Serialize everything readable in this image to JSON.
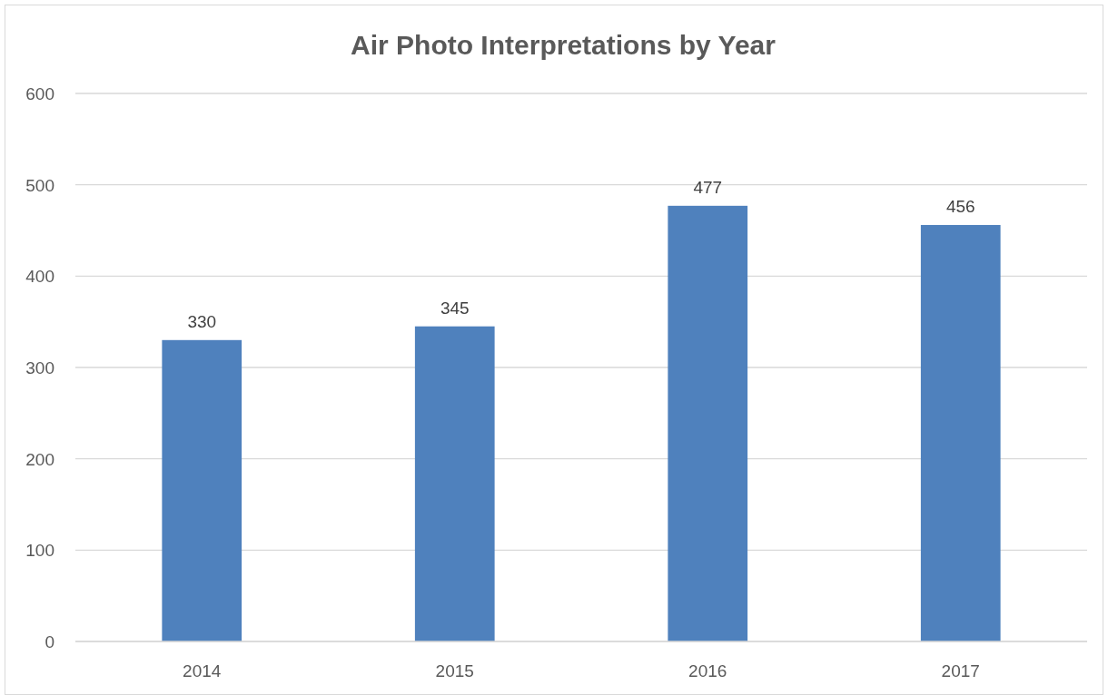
{
  "chart_data": {
    "type": "bar",
    "title": "Air Photo Interpretations by Year",
    "categories": [
      "2014",
      "2015",
      "2016",
      "2017"
    ],
    "values": [
      330,
      345,
      477,
      456
    ],
    "color": "#4f81bd",
    "ylim": [
      0,
      600
    ],
    "yticks": [
      0,
      100,
      200,
      300,
      400,
      500,
      600
    ],
    "grid": "y",
    "data_labels": true
  }
}
